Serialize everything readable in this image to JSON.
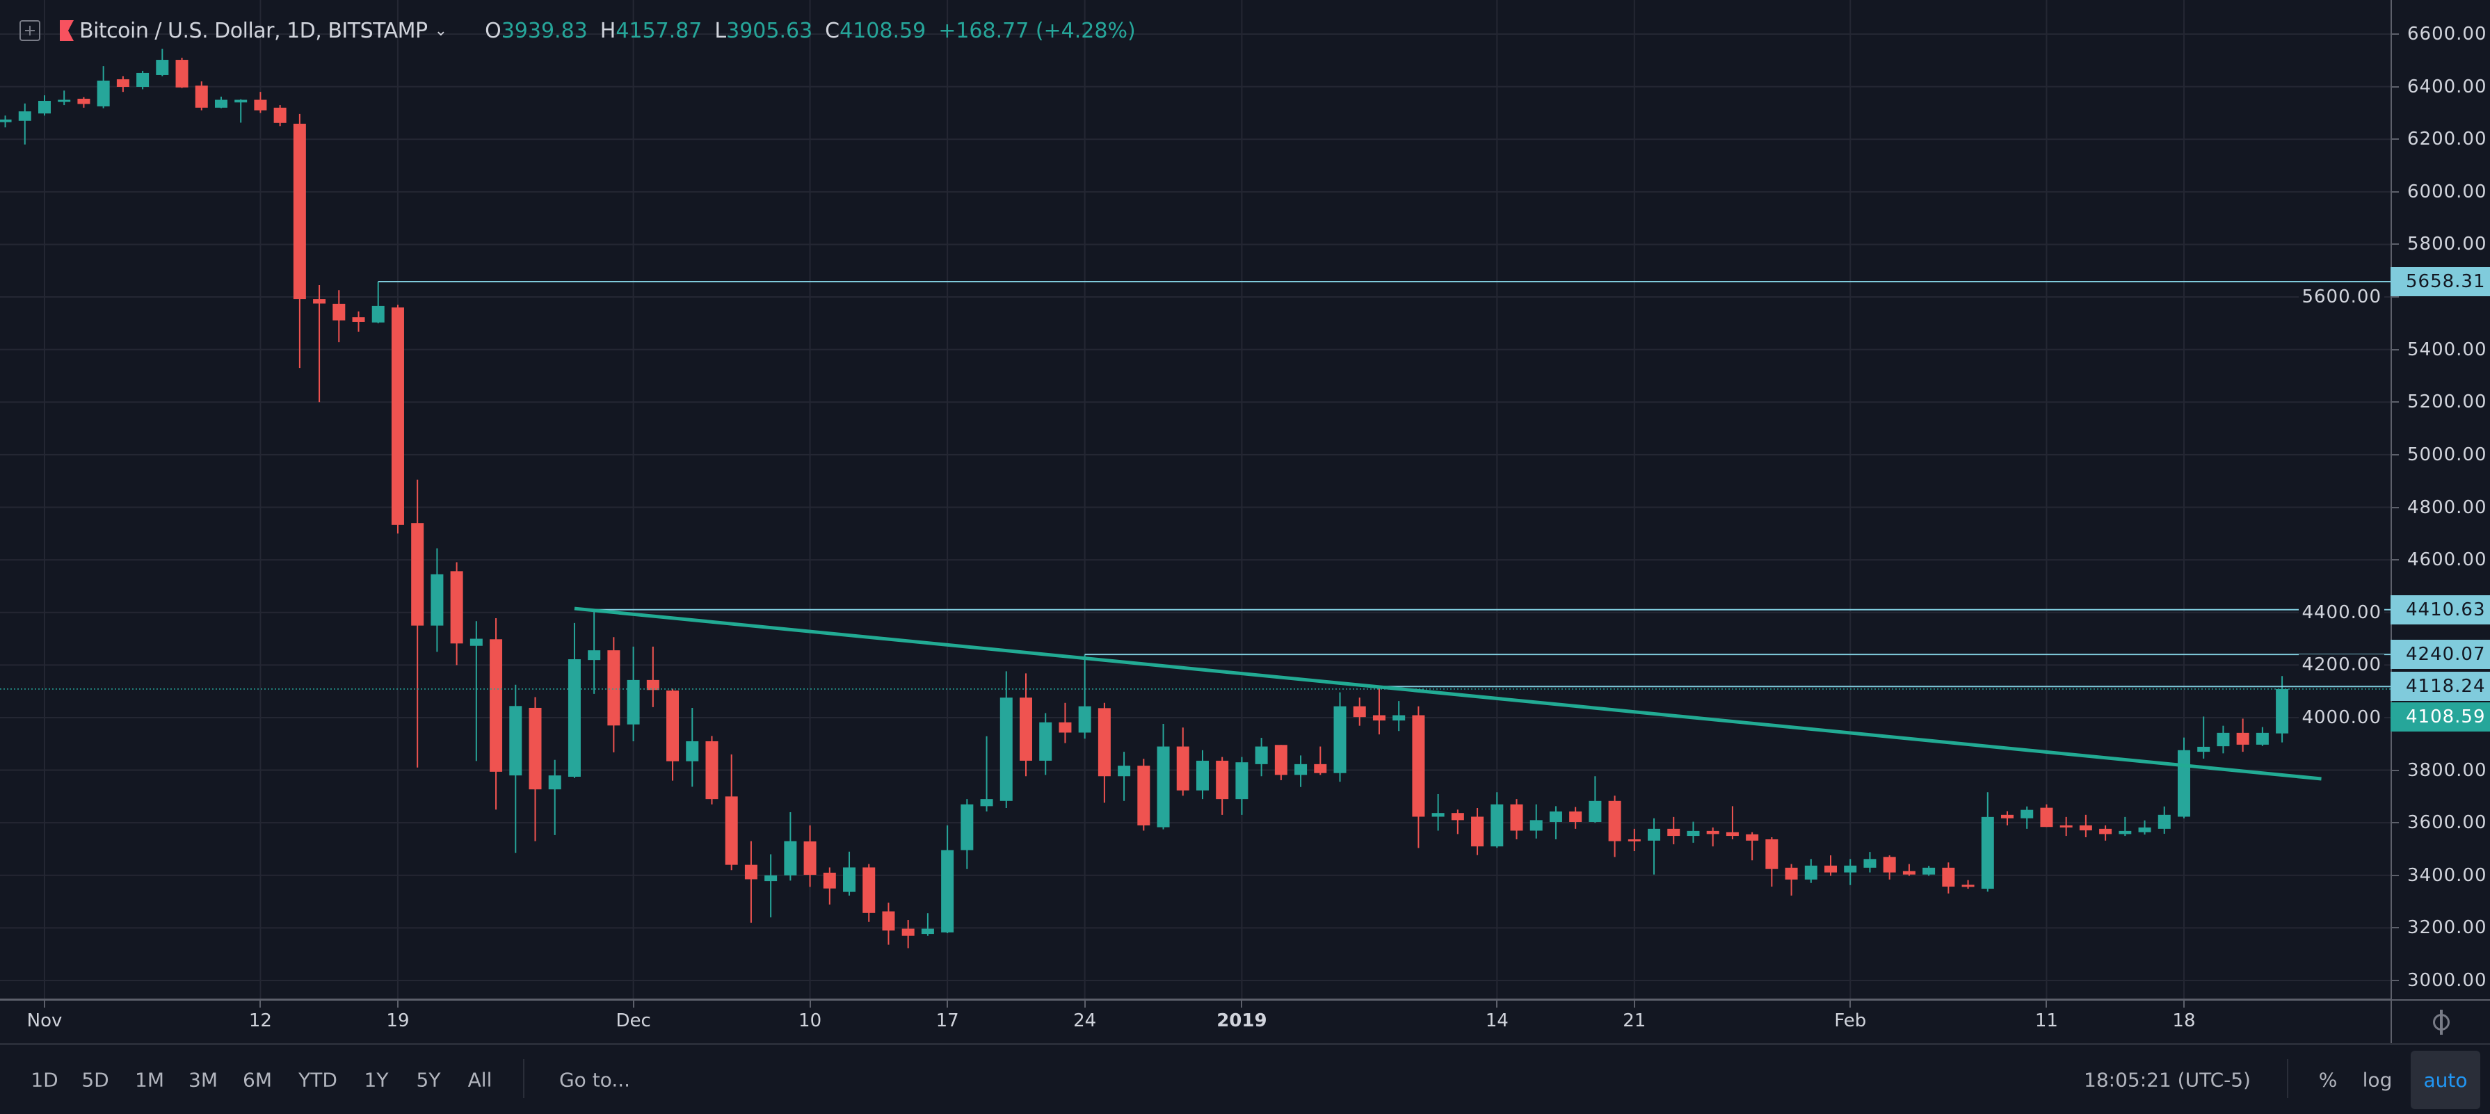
{
  "legend": {
    "title": "Bitcoin / U.S. Dollar, 1D, BITSTAMP",
    "open_label": "O",
    "open": "3939.83",
    "high_label": "H",
    "high": "4157.87",
    "low_label": "L",
    "low": "3905.63",
    "close_label": "C",
    "close": "4108.59",
    "change": "+168.77 (+4.28%)"
  },
  "toolbar": {
    "ranges": [
      "1D",
      "5D",
      "1M",
      "3M",
      "6M",
      "YTD",
      "1Y",
      "5Y",
      "All"
    ],
    "goto": "Go to...",
    "clock": "18:05:21 (UTC-5)",
    "percent": "%",
    "log": "log",
    "auto": "auto"
  },
  "colors": {
    "up": "#26a69a",
    "down": "#ef5350",
    "hline": "#80cbdc",
    "trend": "#22ab94",
    "background": "#131722",
    "grid": "#242733"
  },
  "chart_data": {
    "type": "candlestick",
    "ylim": [
      3000,
      6600
    ],
    "grid": true,
    "y_tick_labels": [
      "3000.00",
      "3200.00",
      "3400.00",
      "3600.00",
      "3800.00",
      "4000.00",
      "4200.00",
      "4400.00",
      "4600.00",
      "4800.00",
      "5000.00",
      "5200.00",
      "5400.00",
      "5600.00",
      "5800.00",
      "6000.00",
      "6200.00",
      "6400.00",
      "6600.00"
    ],
    "x_ticks": [
      {
        "label": "Nov",
        "date": "2018-11-01"
      },
      {
        "label": "12",
        "date": "2018-11-12"
      },
      {
        "label": "19",
        "date": "2018-11-19"
      },
      {
        "label": "Dec",
        "date": "2018-12-01"
      },
      {
        "label": "10",
        "date": "2018-12-10"
      },
      {
        "label": "17",
        "date": "2018-12-17"
      },
      {
        "label": "24",
        "date": "2018-12-24"
      },
      {
        "label": "2019",
        "date": "2019-01-01",
        "bold": true
      },
      {
        "label": "14",
        "date": "2019-01-14"
      },
      {
        "label": "21",
        "date": "2019-01-21"
      },
      {
        "label": "Feb",
        "date": "2019-02-01"
      },
      {
        "label": "11",
        "date": "2019-02-11"
      },
      {
        "label": "18",
        "date": "2019-02-18"
      }
    ],
    "columns": [
      "date",
      "open",
      "high",
      "low",
      "close"
    ],
    "candles": [
      [
        "2018-10-30",
        6265,
        6290,
        6245,
        6275
      ],
      [
        "2018-10-31",
        6270,
        6336,
        6180,
        6306
      ],
      [
        "2018-11-01",
        6298,
        6367,
        6290,
        6346
      ],
      [
        "2018-11-02",
        6342,
        6385,
        6330,
        6350
      ],
      [
        "2018-11-03",
        6354,
        6360,
        6320,
        6334
      ],
      [
        "2018-11-04",
        6325,
        6478,
        6318,
        6423
      ],
      [
        "2018-11-05",
        6428,
        6440,
        6380,
        6399
      ],
      [
        "2018-11-06",
        6399,
        6460,
        6390,
        6452
      ],
      [
        "2018-11-07",
        6444,
        6544,
        6440,
        6502
      ],
      [
        "2018-11-08",
        6502,
        6510,
        6395,
        6397
      ],
      [
        "2018-11-09",
        6404,
        6420,
        6310,
        6320
      ],
      [
        "2018-11-10",
        6320,
        6362,
        6318,
        6350
      ],
      [
        "2018-11-11",
        6340,
        6352,
        6263,
        6350
      ],
      [
        "2018-11-12",
        6350,
        6380,
        6300,
        6310
      ],
      [
        "2018-11-13",
        6320,
        6330,
        6250,
        6262
      ],
      [
        "2018-11-14",
        6259,
        6296,
        5330,
        5592
      ],
      [
        "2018-11-15",
        5592,
        5645,
        5200,
        5575
      ],
      [
        "2018-11-16",
        5574,
        5626,
        5428,
        5511
      ],
      [
        "2018-11-17",
        5523,
        5545,
        5468,
        5505
      ],
      [
        "2018-11-18",
        5503,
        5658.31,
        5500,
        5566
      ],
      [
        "2018-11-19",
        5560,
        5570,
        4700,
        4733
      ],
      [
        "2018-11-20",
        4740,
        4905,
        3810,
        4350
      ],
      [
        "2018-11-21",
        4350,
        4644,
        4250,
        4545
      ],
      [
        "2018-11-22",
        4557,
        4591,
        4200,
        4282
      ],
      [
        "2018-11-23",
        4273,
        4367,
        3835,
        4300
      ],
      [
        "2018-11-24",
        4298,
        4378,
        3650,
        3794
      ],
      [
        "2018-11-25",
        3780,
        4125,
        3485,
        4044
      ],
      [
        "2018-11-26",
        4037,
        4078,
        3530,
        3727
      ],
      [
        "2018-11-27",
        3727,
        3839,
        3553,
        3780
      ],
      [
        "2018-11-28",
        3775,
        4360,
        3770,
        4222
      ],
      [
        "2018-11-29",
        4219,
        4410.63,
        4090,
        4256
      ],
      [
        "2018-11-30",
        4256,
        4306,
        3868,
        3970
      ],
      [
        "2018-12-01",
        3974,
        4270,
        3910,
        4143
      ],
      [
        "2018-12-02",
        4143,
        4270,
        4040,
        4105
      ],
      [
        "2018-12-03",
        4103,
        4110,
        3760,
        3834
      ],
      [
        "2018-12-04",
        3834,
        4037,
        3737,
        3910
      ],
      [
        "2018-12-05",
        3910,
        3930,
        3670,
        3690
      ],
      [
        "2018-12-06",
        3700,
        3860,
        3420,
        3440
      ],
      [
        "2018-12-07",
        3440,
        3530,
        3220,
        3385
      ],
      [
        "2018-12-08",
        3378,
        3480,
        3240,
        3400
      ],
      [
        "2018-12-09",
        3400,
        3640,
        3380,
        3530
      ],
      [
        "2018-12-10",
        3529,
        3590,
        3356,
        3402
      ],
      [
        "2018-12-11",
        3410,
        3430,
        3289,
        3350
      ],
      [
        "2018-12-12",
        3337,
        3490,
        3323,
        3430
      ],
      [
        "2018-12-13",
        3430,
        3443,
        3223,
        3257
      ],
      [
        "2018-12-14",
        3263,
        3296,
        3136,
        3190
      ],
      [
        "2018-12-15",
        3197,
        3230,
        3123,
        3170
      ],
      [
        "2018-12-16",
        3177,
        3256,
        3170,
        3197
      ],
      [
        "2018-12-17",
        3183,
        3590,
        3180,
        3496
      ],
      [
        "2018-12-18",
        3496,
        3690,
        3424,
        3670
      ],
      [
        "2018-12-19",
        3663,
        3929,
        3643,
        3690
      ],
      [
        "2018-12-20",
        3683,
        4176,
        3656,
        4076
      ],
      [
        "2018-12-21",
        4076,
        4168,
        3777,
        3836
      ],
      [
        "2018-12-22",
        3836,
        4017,
        3782,
        3982
      ],
      [
        "2018-12-23",
        3982,
        4056,
        3903,
        3943
      ],
      [
        "2018-12-24",
        3943,
        4240.07,
        3920,
        4043
      ],
      [
        "2018-12-25",
        4036,
        4056,
        3676,
        3777
      ],
      [
        "2018-12-26",
        3777,
        3870,
        3683,
        3817
      ],
      [
        "2018-12-27",
        3817,
        3843,
        3570,
        3590
      ],
      [
        "2018-12-28",
        3583,
        3976,
        3575,
        3890
      ],
      [
        "2018-12-29",
        3890,
        3962,
        3703,
        3723
      ],
      [
        "2018-12-30",
        3723,
        3876,
        3690,
        3836
      ],
      [
        "2018-12-31",
        3836,
        3850,
        3630,
        3690
      ],
      [
        "2019-01-01",
        3690,
        3850,
        3630,
        3830
      ],
      [
        "2019-01-02",
        3823,
        3923,
        3777,
        3890
      ],
      [
        "2019-01-03",
        3896,
        3896,
        3762,
        3782
      ],
      [
        "2019-01-04",
        3782,
        3856,
        3736,
        3823
      ],
      [
        "2019-01-05",
        3823,
        3890,
        3782,
        3789
      ],
      [
        "2019-01-06",
        3789,
        4096,
        3756,
        4043
      ],
      [
        "2019-01-07",
        4043,
        4076,
        3969,
        4002
      ],
      [
        "2019-01-08",
        4009,
        4118.24,
        3936,
        3989
      ],
      [
        "2019-01-09",
        3989,
        4063,
        3949,
        4009
      ],
      [
        "2019-01-10",
        4009,
        4043,
        3504,
        3623
      ],
      [
        "2019-01-11",
        3623,
        3709,
        3570,
        3637
      ],
      [
        "2019-01-12",
        3637,
        3650,
        3557,
        3610
      ],
      [
        "2019-01-13",
        3623,
        3656,
        3477,
        3510
      ],
      [
        "2019-01-14",
        3510,
        3716,
        3505,
        3670
      ],
      [
        "2019-01-15",
        3670,
        3690,
        3537,
        3570
      ],
      [
        "2019-01-16",
        3570,
        3670,
        3540,
        3610
      ],
      [
        "2019-01-17",
        3603,
        3663,
        3537,
        3643
      ],
      [
        "2019-01-18",
        3643,
        3660,
        3577,
        3603
      ],
      [
        "2019-01-19",
        3603,
        3777,
        3600,
        3683
      ],
      [
        "2019-01-20",
        3683,
        3703,
        3470,
        3530
      ],
      [
        "2019-01-21",
        3537,
        3577,
        3492,
        3532
      ],
      [
        "2019-01-22",
        3532,
        3617,
        3403,
        3577
      ],
      [
        "2019-01-23",
        3577,
        3622,
        3518,
        3550
      ],
      [
        "2019-01-24",
        3550,
        3604,
        3524,
        3569
      ],
      [
        "2019-01-25",
        3569,
        3582,
        3510,
        3557
      ],
      [
        "2019-01-26",
        3564,
        3663,
        3537,
        3550
      ],
      [
        "2019-01-27",
        3556,
        3564,
        3457,
        3532
      ],
      [
        "2019-01-28",
        3537,
        3545,
        3357,
        3424
      ],
      [
        "2019-01-29",
        3429,
        3443,
        3323,
        3384
      ],
      [
        "2019-01-30",
        3384,
        3462,
        3371,
        3437
      ],
      [
        "2019-01-31",
        3437,
        3476,
        3398,
        3411
      ],
      [
        "2019-02-01",
        3411,
        3462,
        3363,
        3437
      ],
      [
        "2019-02-02",
        3429,
        3489,
        3411,
        3462
      ],
      [
        "2019-02-03",
        3470,
        3476,
        3384,
        3411
      ],
      [
        "2019-02-04",
        3416,
        3443,
        3398,
        3403
      ],
      [
        "2019-02-05",
        3403,
        3436,
        3398,
        3429
      ],
      [
        "2019-02-06",
        3429,
        3449,
        3331,
        3357
      ],
      [
        "2019-02-07",
        3364,
        3382,
        3349,
        3357
      ],
      [
        "2019-02-08",
        3349,
        3716,
        3338,
        3622
      ],
      [
        "2019-02-09",
        3630,
        3644,
        3590,
        3617
      ],
      [
        "2019-02-10",
        3617,
        3662,
        3577,
        3649
      ],
      [
        "2019-02-11",
        3657,
        3670,
        3584,
        3584
      ],
      [
        "2019-02-12",
        3590,
        3622,
        3550,
        3584
      ],
      [
        "2019-02-13",
        3590,
        3630,
        3545,
        3571
      ],
      [
        "2019-02-14",
        3577,
        3590,
        3532,
        3557
      ],
      [
        "2019-02-15",
        3557,
        3622,
        3550,
        3569
      ],
      [
        "2019-02-16",
        3564,
        3609,
        3555,
        3582
      ],
      [
        "2019-02-17",
        3577,
        3662,
        3558,
        3630
      ],
      [
        "2019-02-18",
        3623,
        3924,
        3617,
        3876
      ],
      [
        "2019-02-19",
        3870,
        4004,
        3844,
        3889
      ],
      [
        "2019-02-20",
        3891,
        3969,
        3864,
        3942
      ],
      [
        "2019-02-21",
        3942,
        3996,
        3870,
        3897
      ],
      [
        "2019-02-22",
        3897,
        3964,
        3892,
        3942
      ],
      [
        "2019-02-23",
        3939.83,
        4157.87,
        3905.63,
        4108.59
      ]
    ],
    "horizontal_lines": [
      {
        "label": "5658.31",
        "value": 5658.31,
        "from": "2018-11-18"
      },
      {
        "label": "4410.63",
        "value": 4410.63,
        "from": "2018-11-29"
      },
      {
        "label": "4240.07",
        "value": 4240.07,
        "from": "2018-12-24"
      },
      {
        "label": "4118.24",
        "value": 4118.24,
        "from": "2019-01-08"
      }
    ],
    "trend_line": {
      "from": {
        "date": "2018-11-28",
        "value": 4415
      },
      "to": {
        "date": "2019-02-25",
        "value": 3767
      }
    },
    "last_price": {
      "label": "4108.59",
      "value": 4108.59
    }
  }
}
